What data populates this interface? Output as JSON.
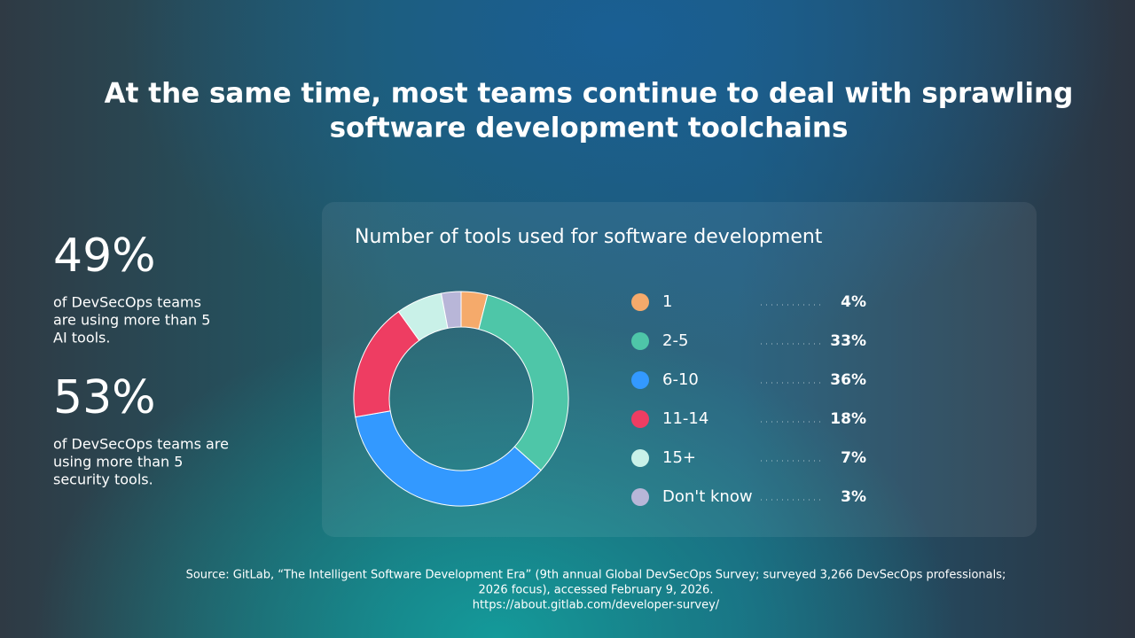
{
  "title": [
    "At the same time, most teams continue to deal with sprawling",
    "software development toolchains"
  ],
  "stats": [
    {
      "value": "49%",
      "text": [
        "of DevSecOps teams",
        "are using more than 5",
        "AI tools."
      ]
    },
    {
      "value": "53%",
      "text": [
        "of DevSecOps teams are",
        "using more than 5",
        "security tools."
      ]
    }
  ],
  "chart_data": {
    "type": "donut",
    "title": "Number of tools used for software development",
    "categories": [
      "1",
      "2-5",
      "6-10",
      "11-14",
      "15+",
      "Don't know"
    ],
    "values": [
      4,
      33,
      36,
      18,
      7,
      3
    ],
    "value_labels": [
      "4%",
      "33%",
      "36%",
      "18%",
      "7%",
      "3%"
    ],
    "colors": [
      "#f5aa6b",
      "#4ec6a8",
      "#3399ff",
      "#ee3d62",
      "#c9f1e8",
      "#b8b6d8"
    ]
  },
  "source": [
    "Source: GitLab, “The Intelligent Software Development Era” (9th annual Global DevSecOps Survey; surveyed 3,266 DevSecOps professionals;",
    "2026 focus), accessed February 9, 2026.",
    "https://about.gitlab.com/developer-survey/"
  ]
}
